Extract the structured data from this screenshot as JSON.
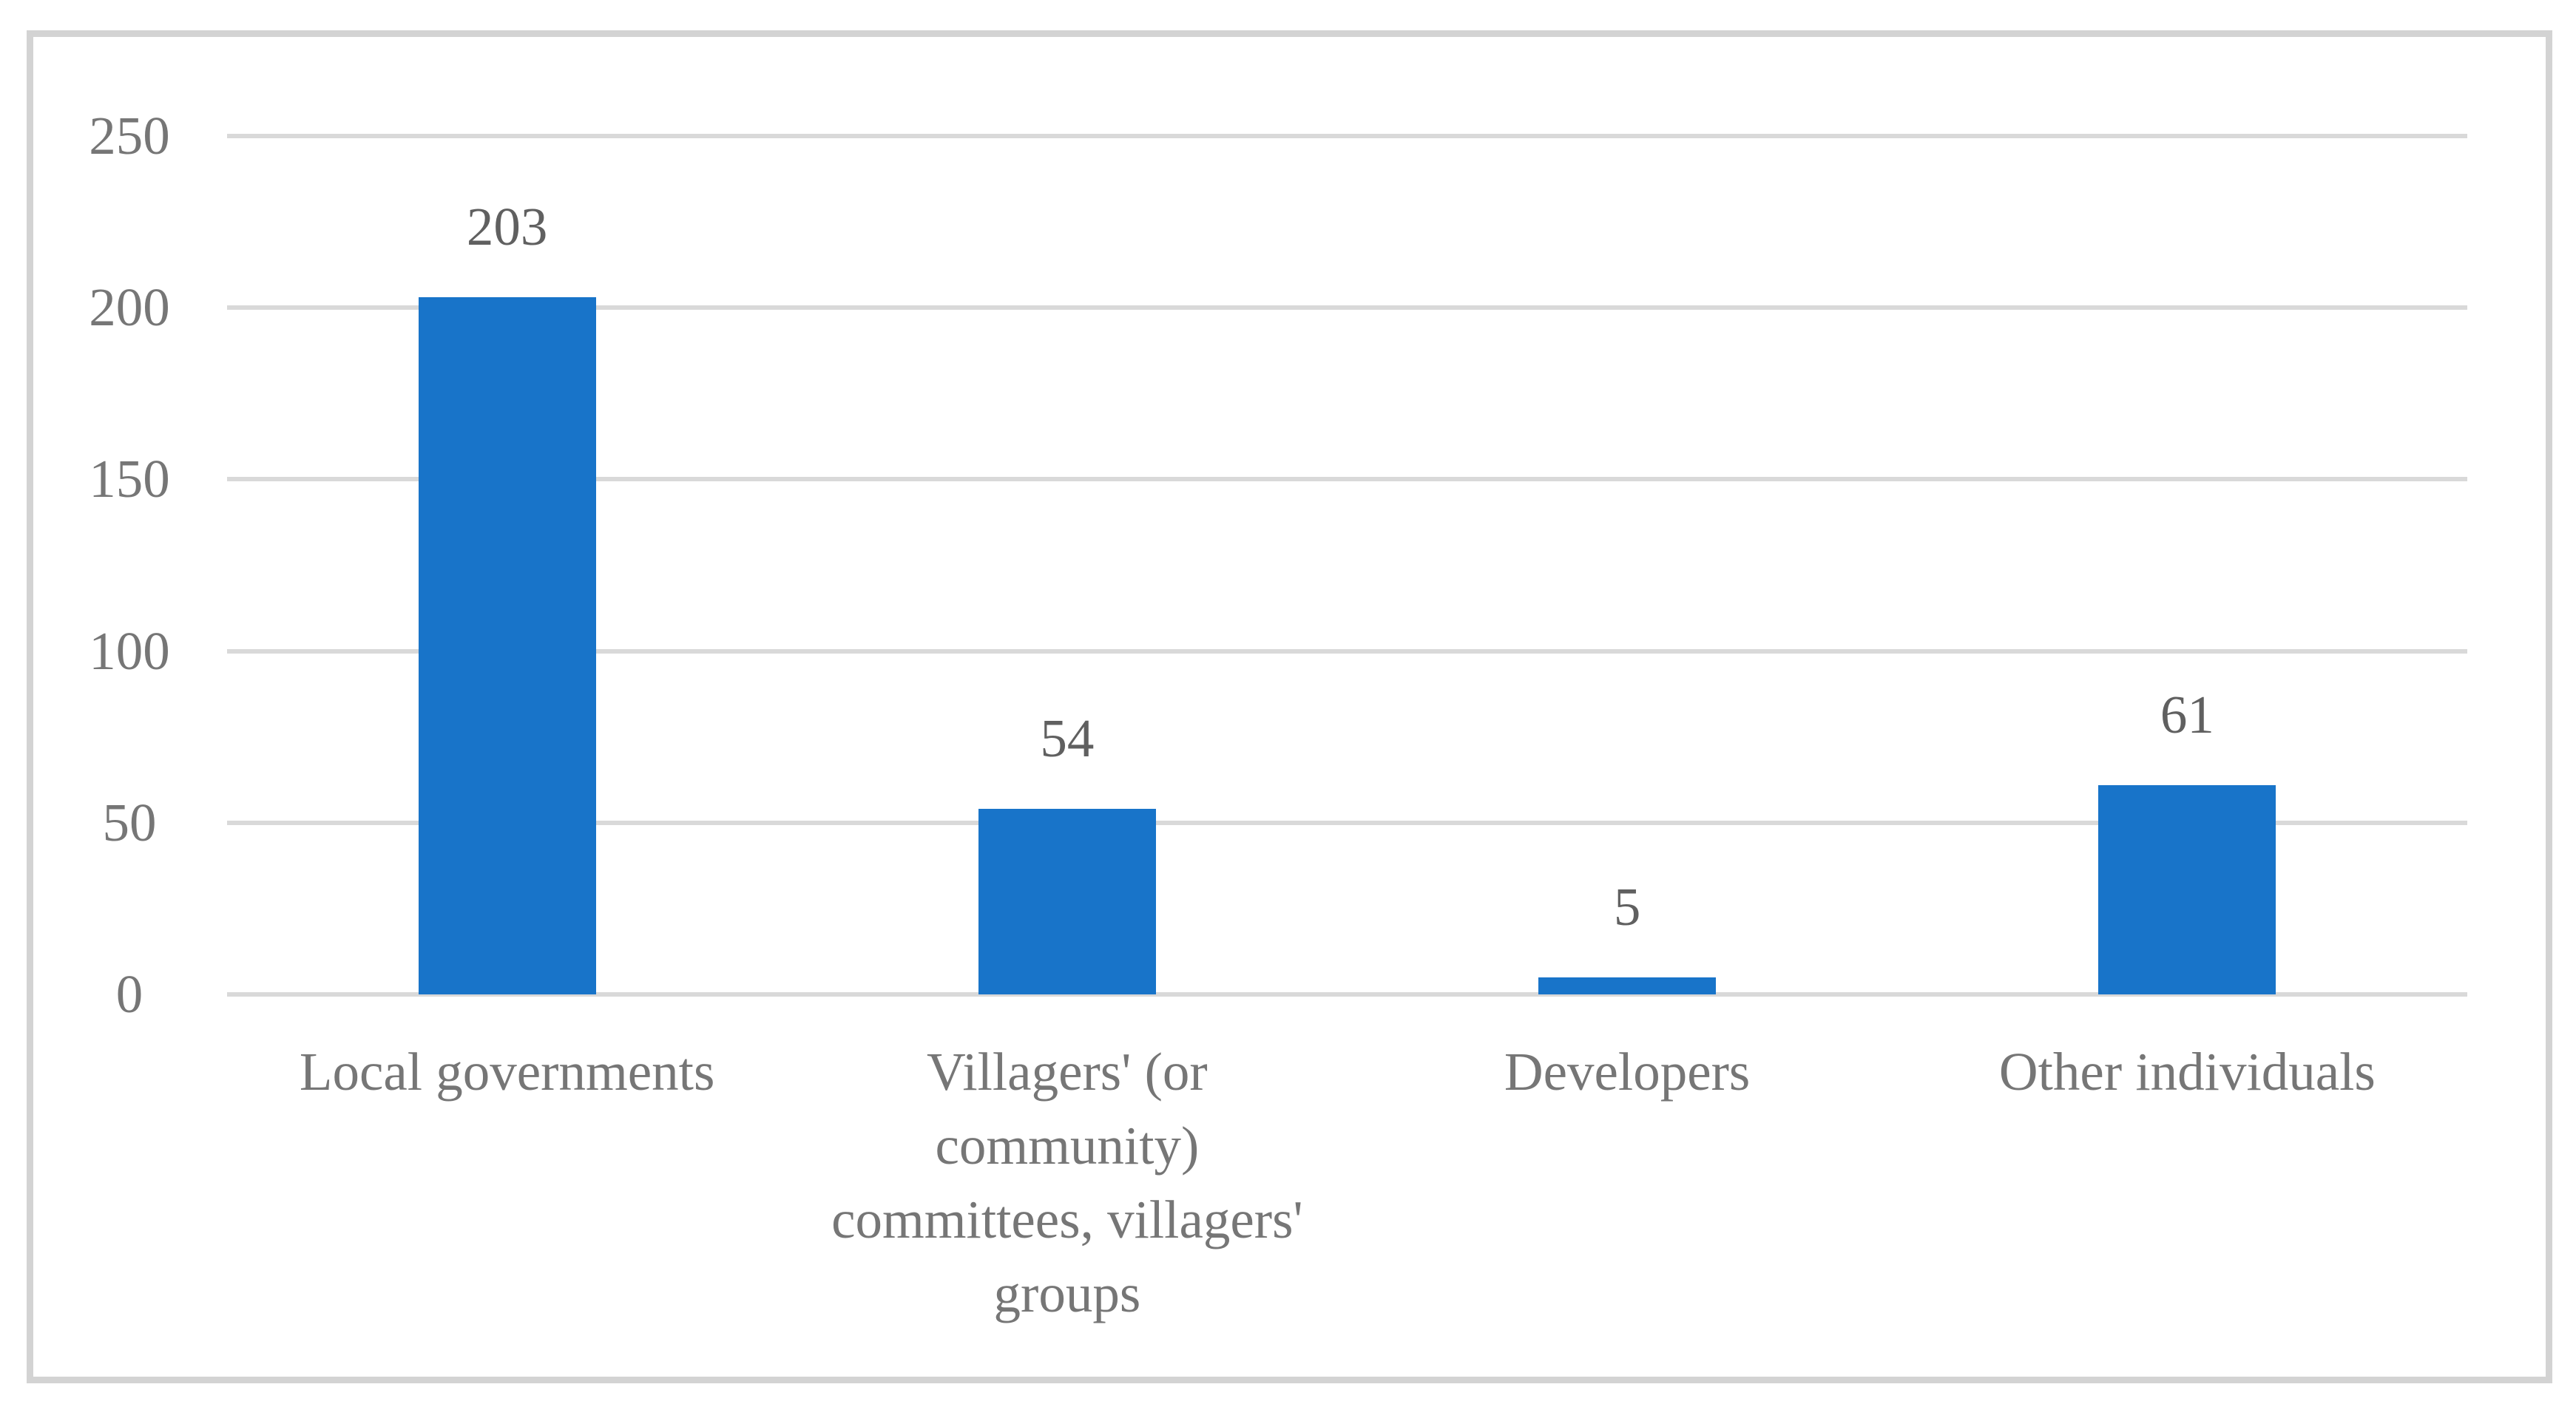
{
  "chart_data": {
    "type": "bar",
    "title": "",
    "xlabel": "",
    "ylabel": "",
    "categories": [
      "Local governments",
      "Villagers' (or community) committees, villagers' groups",
      "Developers",
      "Other individuals"
    ],
    "category_display": [
      "Local governments",
      "Villagers' (or\ncommunity)\ncommittees, villagers'\ngroups",
      "Developers",
      "Other individuals"
    ],
    "values": [
      203,
      54,
      5,
      61
    ],
    "data_labels": [
      "203",
      "54",
      "5",
      "61"
    ],
    "yticks": [
      250,
      200,
      150,
      100,
      50,
      0
    ],
    "ylim": [
      0,
      250
    ],
    "grid": true,
    "legend": null,
    "colors": {
      "bar": "#1874c9",
      "gridline": "#d9d9d9",
      "frame_border": "#d3d3d3",
      "tick_text": "#767676",
      "category_text": "#767676",
      "data_label_text": "#606060",
      "background": "#ffffff"
    }
  }
}
